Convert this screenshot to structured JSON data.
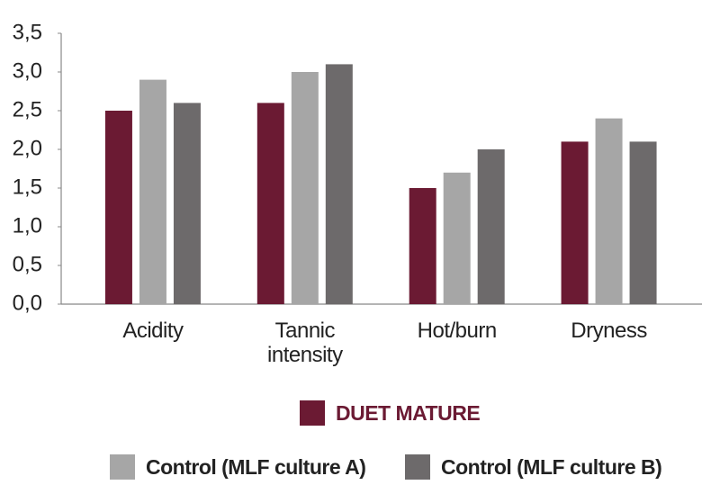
{
  "chart_data": {
    "type": "bar",
    "categories": [
      "Acidity",
      "Tannic intensity",
      "Hot/burn",
      "Dryness"
    ],
    "series": [
      {
        "name": "DUET MATURE",
        "color": "#6b1a33",
        "values": [
          2.5,
          2.6,
          1.5,
          2.1
        ]
      },
      {
        "name": "Control (MLF culture A)",
        "color": "#a6a6a6",
        "values": [
          2.9,
          3.0,
          1.7,
          2.4
        ]
      },
      {
        "name": "Control (MLF culture B)",
        "color": "#6d6a6b",
        "values": [
          2.6,
          3.1,
          2.0,
          2.1
        ]
      }
    ],
    "ylim": [
      0,
      3.5
    ],
    "yticks": [
      {
        "value": 0,
        "label": "0,0"
      },
      {
        "value": 0.5,
        "label": "0,5"
      },
      {
        "value": 1,
        "label": "1,0"
      },
      {
        "value": 1.5,
        "label": "1,5"
      },
      {
        "value": 2,
        "label": "2,0"
      },
      {
        "value": 2.5,
        "label": "2,5"
      },
      {
        "value": 3,
        "label": "3,0"
      },
      {
        "value": 3.5,
        "label": "3,5"
      }
    ],
    "grid": false
  }
}
